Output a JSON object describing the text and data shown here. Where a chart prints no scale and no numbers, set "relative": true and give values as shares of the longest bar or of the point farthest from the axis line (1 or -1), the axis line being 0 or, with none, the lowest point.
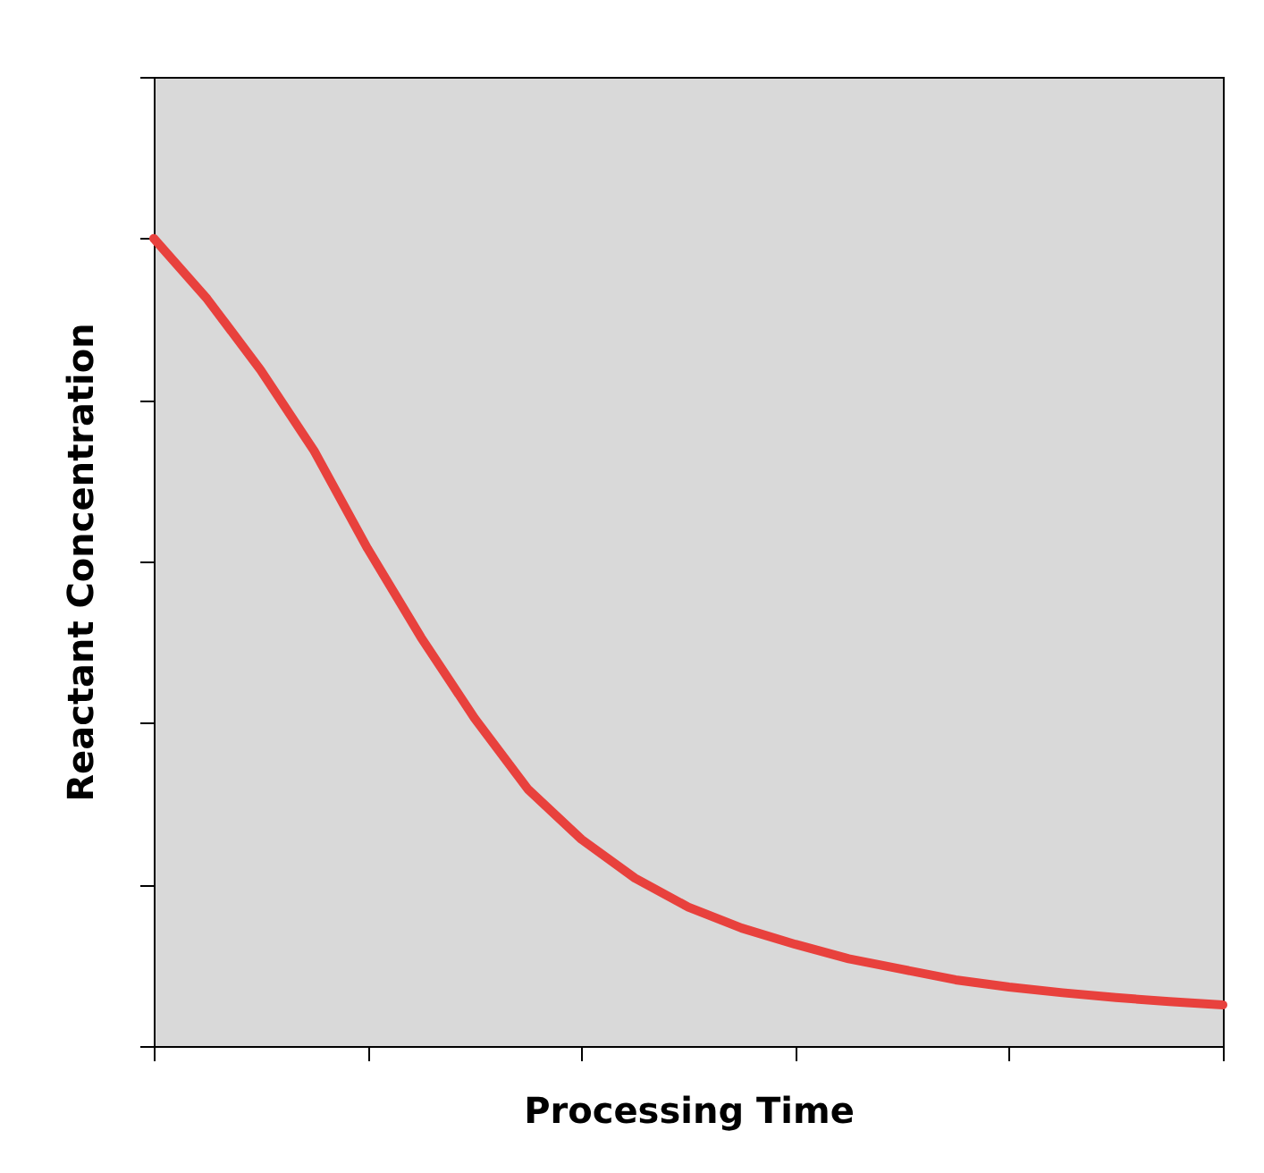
{
  "chart_data": {
    "type": "line",
    "relative": true,
    "xlabel": "Processing Time",
    "ylabel": "Reactant Concentration",
    "categories": [
      null,
      null,
      null,
      null,
      null,
      null,
      null,
      null,
      null,
      null,
      null,
      null,
      null,
      null,
      null,
      null,
      null,
      null,
      null,
      null,
      null
    ],
    "series": [
      {
        "color": "#e8413d",
        "values": [
          1.0,
          0.925,
          0.837,
          0.737,
          0.616,
          0.506,
          0.406,
          0.318,
          0.256,
          0.208,
          0.172,
          0.146,
          0.126,
          0.108,
          0.095,
          0.082,
          0.073,
          0.066,
          0.06,
          0.055,
          0.051
        ]
      }
    ],
    "tick_labels": false,
    "grid": false,
    "marker": "none",
    "line_style": "solid"
  }
}
